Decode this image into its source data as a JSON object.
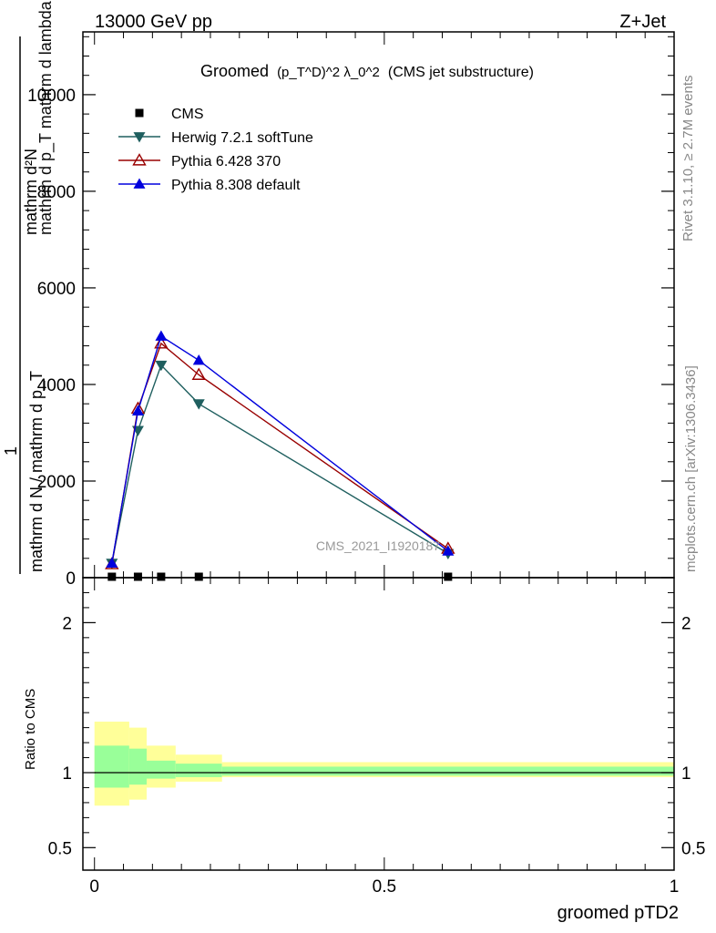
{
  "header": {
    "left": "13000 GeV pp",
    "right": "Z+Jet"
  },
  "side_labels": {
    "rivet": "Rivet 3.1.10, ≥ 2.7M events",
    "mcplots": "mcplots.cern.ch [arXiv:1306.3436]"
  },
  "chart_data": [
    {
      "type": "line",
      "title_main": "Groomed",
      "title_math": "(p_T^D)^2 λ_0^2",
      "title_note": "(CMS jet substructure)",
      "ylabel_numerator": "mathrm d²N",
      "ylabel_denominator": "mathrm d p_T mathrm d lambda",
      "ylabel_prefix_top": "1",
      "ylabel_prefix_bottom": "mathrm d N / mathrm d p_T",
      "xlim": [
        -0.02,
        1.0
      ],
      "ylim": [
        0,
        11300
      ],
      "yticks": [
        0,
        2000,
        4000,
        6000,
        8000,
        10000
      ],
      "watermark": "CMS_2021_I1920187",
      "legend_position": "top-left",
      "x": [
        0.03,
        0.075,
        0.115,
        0.18,
        0.61
      ],
      "series": [
        {
          "name": "CMS",
          "color": "#000000",
          "marker": "square",
          "values": [
            0,
            0,
            0,
            0,
            0
          ]
        },
        {
          "name": "Herwig 7.2.1 softTune",
          "color": "#1f5f5f",
          "marker": "triangle-down",
          "values": [
            300,
            3050,
            4400,
            3600,
            500
          ]
        },
        {
          "name": "Pythia 6.428 370",
          "color": "#990000",
          "marker": "triangle-up-open",
          "values": [
            280,
            3500,
            4850,
            4200,
            600
          ]
        },
        {
          "name": "Pythia 8.308 default",
          "color": "#0000dd",
          "marker": "triangle-up",
          "values": [
            300,
            3450,
            5000,
            4500,
            550
          ]
        }
      ]
    },
    {
      "type": "area",
      "ylabel": "Ratio to CMS",
      "xlabel": "groomed pTD2",
      "xlim": [
        -0.02,
        1.0
      ],
      "ylim": [
        0.35,
        2.3
      ],
      "yticks": [
        0.5,
        1,
        2
      ],
      "ytick_labels": [
        "0.5",
        "1",
        "2"
      ],
      "xticks": [
        0,
        0.5,
        1
      ],
      "xtick_labels": [
        "0",
        "0.5",
        "1"
      ],
      "reference": 1,
      "bins": [
        0,
        0.06,
        0.09,
        0.14,
        0.22,
        1.0
      ],
      "band_total_low": [
        0.78,
        0.82,
        0.9,
        0.94,
        0.97
      ],
      "band_total_high": [
        1.34,
        1.3,
        1.18,
        1.12,
        1.07
      ],
      "band_stat_low": [
        0.9,
        0.92,
        0.96,
        0.97,
        0.98
      ],
      "band_stat_high": [
        1.18,
        1.16,
        1.08,
        1.06,
        1.04
      ],
      "band_total_color": "#ffff99",
      "band_stat_color": "#99ff99"
    }
  ]
}
